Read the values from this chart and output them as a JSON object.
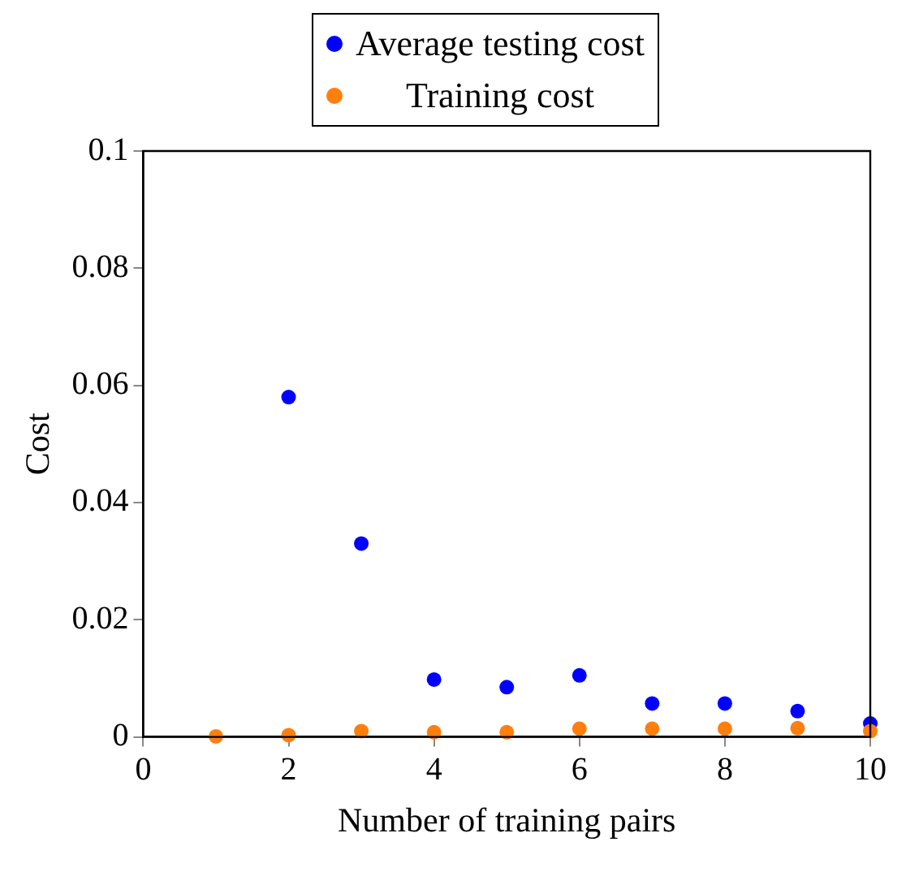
{
  "chart_data": {
    "type": "scatter",
    "xlabel": "Number of training pairs",
    "ylabel": "Cost",
    "x": [
      1,
      2,
      3,
      4,
      5,
      6,
      7,
      8,
      9,
      10
    ],
    "series": [
      {
        "name": "Average testing cost",
        "color": "#0000ff",
        "values": [
          null,
          0.058,
          0.033,
          0.0098,
          0.0085,
          0.0105,
          0.0057,
          0.0057,
          0.0044,
          0.0023
        ]
      },
      {
        "name": "Training cost",
        "color": "#ff7f0e",
        "values": [
          0.0001,
          0.0003,
          0.001,
          0.0008,
          0.0008,
          0.0014,
          0.0014,
          0.0014,
          0.0015,
          0.001
        ]
      }
    ],
    "xlim": [
      0,
      10
    ],
    "xticks": [
      0,
      2,
      4,
      6,
      8,
      10
    ],
    "ylim": [
      0,
      0.1
    ],
    "yticks": [
      0,
      0.02,
      0.04,
      0.06,
      0.08,
      0.1
    ],
    "legend": "top",
    "marker": "circle",
    "grid": false
  }
}
